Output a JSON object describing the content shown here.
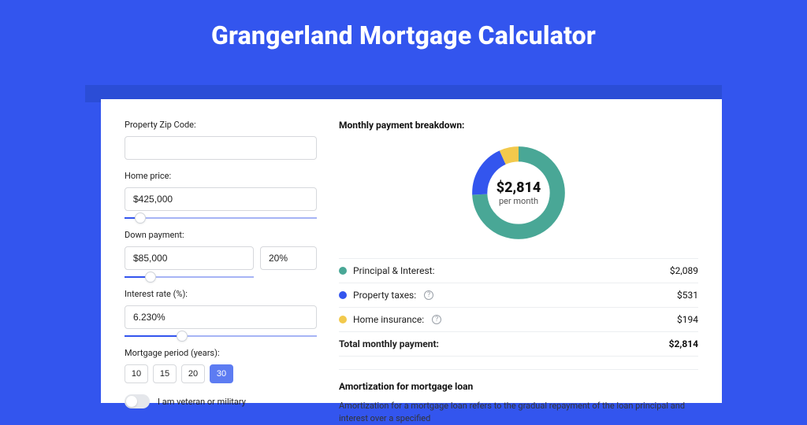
{
  "colors": {
    "page_bg": "#3355ee",
    "bluebar": "#2b4dd6",
    "card_bg": "#ffffff",
    "slider_fill": "#3355ee",
    "text": "#222222"
  },
  "title": "Grangerland Mortgage Calculator",
  "form": {
    "zip": {
      "label": "Property Zip Code:",
      "value": ""
    },
    "home_price": {
      "label": "Home price:",
      "value": "$425,000",
      "slider_pct": 8
    },
    "down_payment": {
      "label": "Down payment:",
      "value": "$85,000",
      "pct_value": "20%",
      "slider_pct": 20
    },
    "interest": {
      "label": "Interest rate (%):",
      "value": "6.230%",
      "slider_pct": 30
    },
    "period": {
      "label": "Mortgage period (years):",
      "options": [
        "10",
        "15",
        "20",
        "30"
      ],
      "selected": "30"
    },
    "veteran": {
      "label": "I am veteran or military",
      "on": false
    }
  },
  "breakdown": {
    "title": "Monthly payment breakdown:",
    "center_value": "$2,814",
    "center_sub": "per month",
    "donut": {
      "type": "donut",
      "stroke_width": 18,
      "background": "#ffffff",
      "series": [
        {
          "key": "principal_interest",
          "color": "#49a796",
          "pct": 74.2
        },
        {
          "key": "property_taxes",
          "color": "#3355ee",
          "pct": 18.9
        },
        {
          "key": "home_insurance",
          "color": "#f2c94c",
          "pct": 6.9
        }
      ]
    },
    "rows": [
      {
        "label": "Principal & Interest:",
        "value": "$2,089",
        "color": "#49a796",
        "help": false
      },
      {
        "label": "Property taxes:",
        "value": "$531",
        "color": "#3355ee",
        "help": true
      },
      {
        "label": "Home insurance:",
        "value": "$194",
        "color": "#f2c94c",
        "help": true
      }
    ],
    "total": {
      "label": "Total monthly payment:",
      "value": "$2,814"
    }
  },
  "amortization": {
    "title": "Amortization for mortgage loan",
    "body": "Amortization for a mortgage loan refers to the gradual repayment of the loan principal and interest over a specified"
  }
}
